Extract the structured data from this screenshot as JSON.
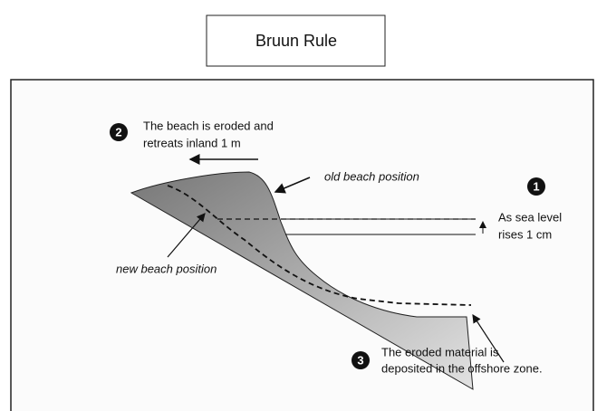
{
  "header": {
    "title": "Bruun Rule"
  },
  "labels": {
    "step_2": {
      "number": "2",
      "lines": [
        "The beach is eroded and",
        "retreats inland 1 m"
      ]
    },
    "step_1": {
      "number": "1",
      "lines": [
        "As sea level",
        "rises 1 cm"
      ]
    },
    "step_3": {
      "number": "3",
      "lines": [
        "The eroded material is",
        "deposited in the offshore zone."
      ]
    },
    "old_beach": "old beach position",
    "new_beach": "new beach position"
  }
}
